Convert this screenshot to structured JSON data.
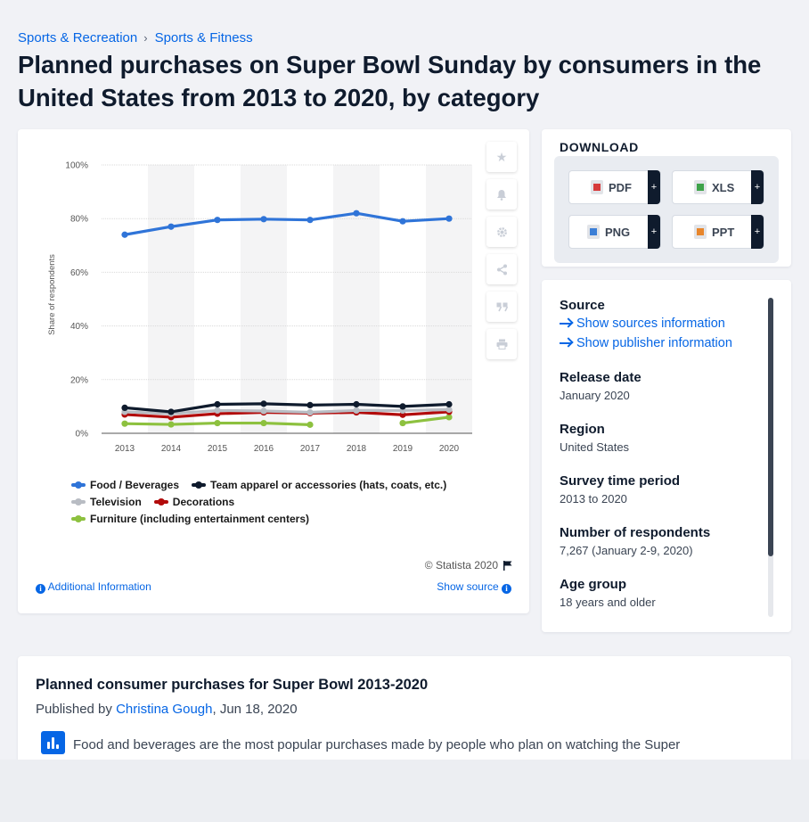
{
  "breadcrumb": {
    "item1": "Sports & Recreation",
    "item2": "Sports & Fitness",
    "separator": "›"
  },
  "page_title": "Planned purchases on Super Bowl Sunday by consumers in the United States from 2013 to 2020, by category",
  "chart": {
    "copyright": "© Statista 2020",
    "additional_info": "Additional Information",
    "show_source": "Show source"
  },
  "chart_data": {
    "type": "line",
    "title": "",
    "xlabel": "",
    "ylabel": "Share of respondents",
    "x": [
      "2013",
      "2014",
      "2015",
      "2016",
      "2017",
      "2018",
      "2019",
      "2020"
    ],
    "ylim": [
      0,
      100
    ],
    "yticks": [
      "0%",
      "20%",
      "40%",
      "60%",
      "80%",
      "100%"
    ],
    "grid": true,
    "legend_position": "bottom",
    "series": [
      {
        "name": "Food / Beverages",
        "color": "#2f74d8",
        "values": [
          74,
          77,
          79.5,
          79.8,
          79.5,
          82,
          79,
          80
        ]
      },
      {
        "name": "Team apparel or accessories (hats, coats, etc.)",
        "color": "#0f1b2d",
        "values": [
          9.5,
          8,
          10.8,
          11,
          10.5,
          10.8,
          10,
          10.8
        ]
      },
      {
        "name": "Television",
        "color": "#b8bcc3",
        "values": [
          8,
          7.3,
          8.5,
          8.3,
          7.8,
          8.5,
          8.5,
          8.8
        ]
      },
      {
        "name": "Decorations",
        "color": "#b20b0b",
        "values": [
          7,
          6,
          7.3,
          7.8,
          7.5,
          7.8,
          6.9,
          8
        ]
      },
      {
        "name": "Furniture (including entertainment centers)",
        "color": "#8dc13f",
        "values": [
          3.6,
          3.3,
          3.8,
          3.8,
          3.2,
          null,
          3.8,
          6
        ]
      }
    ]
  },
  "tools": {
    "favorite": "star-icon",
    "alert": "bell-icon",
    "settings": "gear-icon",
    "share": "share-icon",
    "cite": "quote-icon",
    "print": "print-icon"
  },
  "download": {
    "title": "DOWNLOAD",
    "pdf": "PDF",
    "xls": "XLS",
    "png": "PNG",
    "ppt": "PPT",
    "plus": "+"
  },
  "info": {
    "source_heading": "Source",
    "show_sources": "Show sources information",
    "show_publisher": "Show publisher information",
    "release_date_heading": "Release date",
    "release_date": "January 2020",
    "region_heading": "Region",
    "region": "United States",
    "survey_period_heading": "Survey time period",
    "survey_period": "2013 to 2020",
    "respondents_heading": "Number of respondents",
    "respondents": "7,267 (January 2-9, 2020)",
    "age_heading": "Age group",
    "age": "18 years and older"
  },
  "article": {
    "title": "Planned consumer purchases for Super Bowl 2013-2020",
    "published_by": "Published by",
    "author": "Christina Gough",
    "date": ", Jun 18, 2020",
    "text": "Food and beverages are the most popular purchases made by people who plan on watching the Super"
  }
}
